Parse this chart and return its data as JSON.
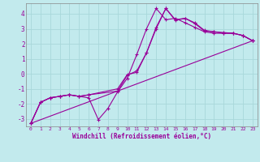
{
  "title": "",
  "xlabel": "Windchill (Refroidissement éolien,°C)",
  "ylabel": "",
  "bg_color": "#c2eaed",
  "line_color": "#990099",
  "xlim": [
    -0.5,
    23.5
  ],
  "ylim": [
    -3.5,
    4.7
  ],
  "yticks": [
    -3,
    -2,
    -1,
    0,
    1,
    2,
    3,
    4
  ],
  "xticks": [
    0,
    1,
    2,
    3,
    4,
    5,
    6,
    7,
    8,
    9,
    10,
    11,
    12,
    13,
    14,
    15,
    16,
    17,
    18,
    19,
    20,
    21,
    22,
    23
  ],
  "grid_color": "#a8d8da",
  "curves": [
    {
      "x": [
        0,
        1,
        2,
        3,
        4,
        5,
        6,
        7,
        8,
        9,
        10,
        11,
        12,
        13,
        14,
        15,
        16,
        17,
        18,
        19,
        20,
        21,
        22,
        23
      ],
      "y": [
        -3.3,
        -1.9,
        -1.6,
        -1.5,
        -1.4,
        -1.5,
        -1.6,
        -3.05,
        -2.3,
        -1.2,
        -0.3,
        1.3,
        3.0,
        4.35,
        3.6,
        3.7,
        3.4,
        3.1,
        2.8,
        2.7,
        2.7,
        2.7,
        2.55,
        2.2
      ]
    },
    {
      "x": [
        0,
        1,
        2,
        3,
        4,
        5,
        6,
        9,
        10,
        11,
        12,
        13,
        14,
        15,
        16,
        17,
        18,
        19,
        20,
        21,
        22,
        23
      ],
      "y": [
        -3.3,
        -1.9,
        -1.6,
        -1.5,
        -1.4,
        -1.5,
        -1.4,
        -1.15,
        -0.1,
        0.2,
        1.4,
        3.0,
        4.35,
        3.6,
        3.7,
        3.4,
        2.9,
        2.8,
        2.7,
        2.7,
        2.55,
        2.2
      ]
    },
    {
      "x": [
        0,
        1,
        2,
        3,
        4,
        5,
        6,
        9,
        10,
        11,
        12,
        13,
        14,
        15,
        16,
        17,
        18,
        19,
        20,
        21,
        22,
        23
      ],
      "y": [
        -3.3,
        -1.9,
        -1.6,
        -1.5,
        -1.4,
        -1.5,
        -1.4,
        -1.0,
        -0.05,
        0.1,
        1.4,
        3.1,
        4.35,
        3.55,
        3.7,
        3.35,
        2.85,
        2.8,
        2.75,
        2.7,
        2.55,
        2.2
      ]
    },
    {
      "x": [
        0,
        23
      ],
      "y": [
        -3.3,
        2.2
      ]
    }
  ]
}
